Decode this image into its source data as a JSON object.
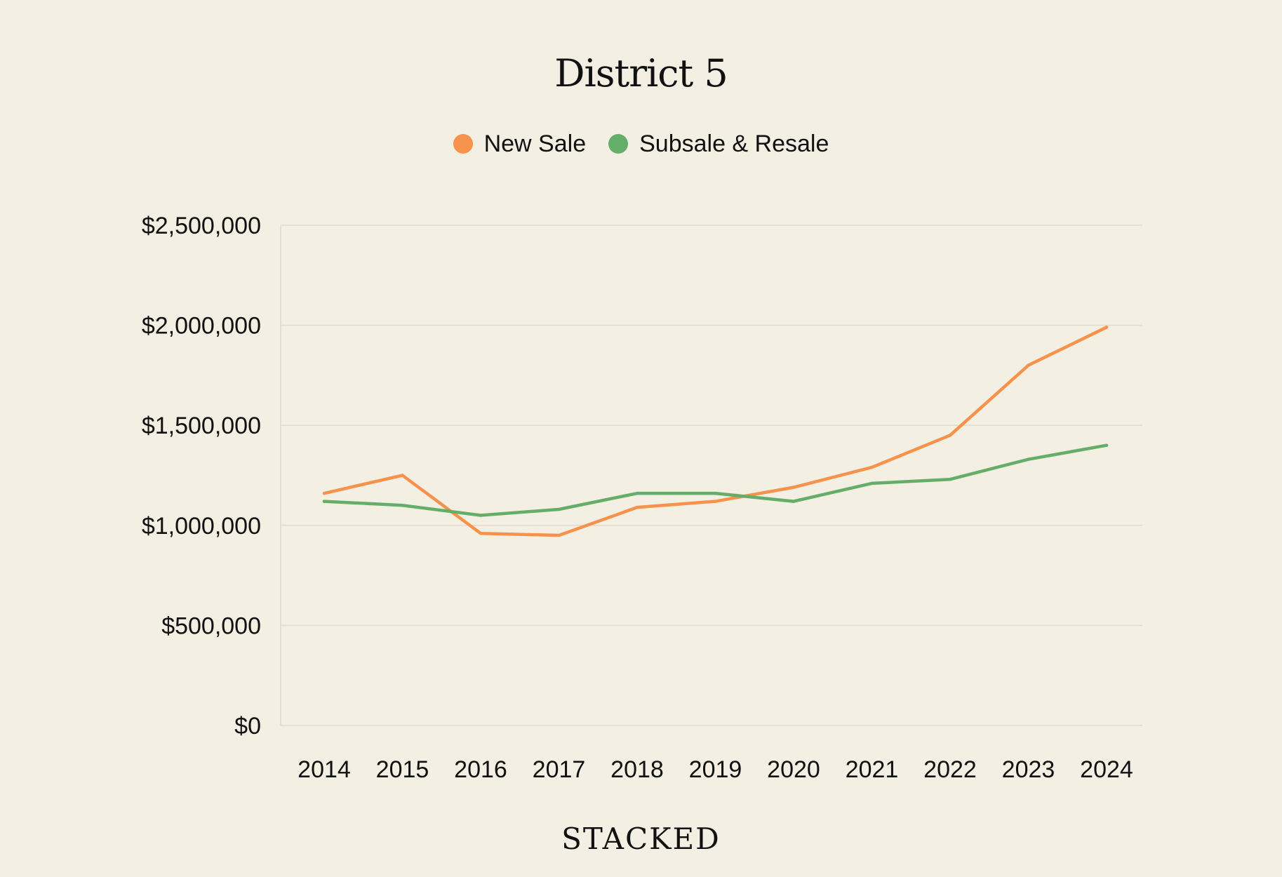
{
  "chart_data": {
    "type": "line",
    "title": "District 5",
    "x": [
      "2014",
      "2015",
      "2016",
      "2017",
      "2018",
      "2019",
      "2020",
      "2021",
      "2022",
      "2023",
      "2024"
    ],
    "ylim": [
      0,
      2500000
    ],
    "yticks": [
      0,
      500000,
      1000000,
      1500000,
      2000000,
      2500000
    ],
    "ytick_labels": [
      "$0",
      "$500,000",
      "$1,000,000",
      "$1,500,000",
      "$2,000,000",
      "$2,500,000"
    ],
    "series": [
      {
        "name": "New Sale",
        "color": "#f6924c",
        "values": [
          1160000,
          1250000,
          960000,
          950000,
          1090000,
          1120000,
          1190000,
          1290000,
          1450000,
          1800000,
          1990000
        ]
      },
      {
        "name": "Subsale & Resale",
        "color": "#65ae6a",
        "values": [
          1120000,
          1100000,
          1050000,
          1080000,
          1160000,
          1160000,
          1120000,
          1210000,
          1230000,
          1330000,
          1400000
        ]
      }
    ],
    "grid": true,
    "legend_position": "top-center"
  },
  "branding": {
    "wordmark": "STACKED"
  }
}
